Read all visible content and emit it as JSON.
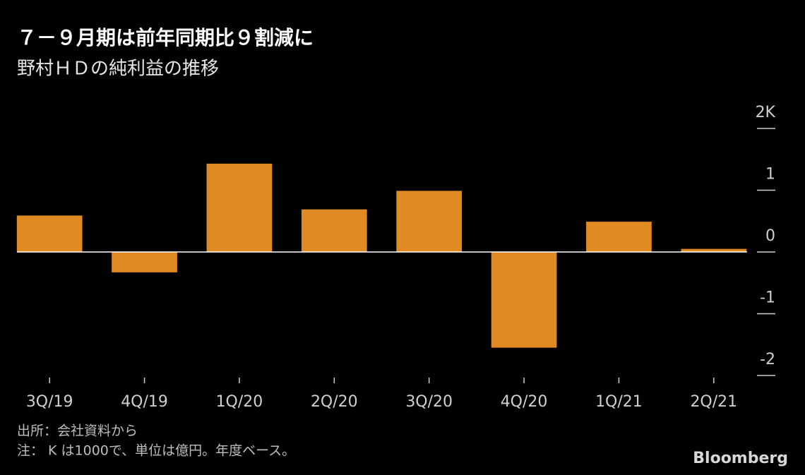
{
  "chart_data": {
    "type": "bar",
    "title": "７－９月期は前年同期比９割減に",
    "subtitle": "野村ＨＤの純利益の推移",
    "categories": [
      "3Q/19",
      "4Q/19",
      "1Q/20",
      "2Q/20",
      "3Q/20",
      "4Q/20",
      "1Q/21",
      "2Q/21"
    ],
    "values": [
      0.59,
      -0.33,
      1.43,
      0.69,
      0.99,
      -1.55,
      0.49,
      0.05
    ],
    "color": "#e08a24",
    "ylim": [
      -2,
      2
    ],
    "yticks": [
      {
        "value": 2,
        "label": "2K"
      },
      1,
      0,
      -1,
      -2
    ],
    "source": "出所：会社資料から",
    "note": "注： K は1000で、単位は億円。年度ベース。",
    "brand": "Bloomberg"
  }
}
